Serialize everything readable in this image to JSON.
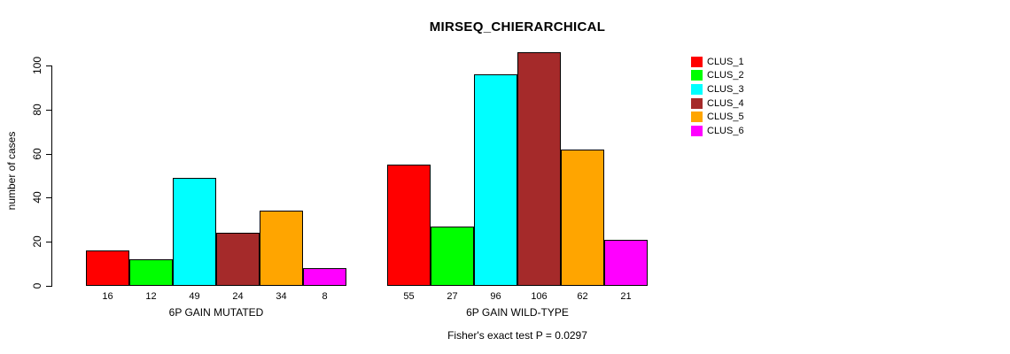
{
  "chart_data": {
    "type": "bar",
    "title": "MIRSEQ_CHIERARCHICAL",
    "xlabel": "",
    "ylabel": "number of cases",
    "ylim": [
      0,
      100
    ],
    "y_ticks": [
      0,
      20,
      40,
      60,
      80,
      100
    ],
    "grid": false,
    "legend_position": "right",
    "categories": [
      "6P GAIN MUTATED",
      "6P GAIN WILD-TYPE"
    ],
    "series": [
      {
        "name": "CLUS_1",
        "color": "#FF0000",
        "values": [
          16,
          55
        ]
      },
      {
        "name": "CLUS_2",
        "color": "#00FF00",
        "values": [
          12,
          27
        ]
      },
      {
        "name": "CLUS_3",
        "color": "#00FFFF",
        "values": [
          49,
          96
        ]
      },
      {
        "name": "CLUS_4",
        "color": "#A52A2A",
        "values": [
          24,
          106
        ]
      },
      {
        "name": "CLUS_5",
        "color": "#FFA500",
        "values": [
          34,
          62
        ]
      },
      {
        "name": "CLUS_6",
        "color": "#FF00FF",
        "values": [
          8,
          21
        ]
      }
    ],
    "bar_value_labels": true,
    "annotation": "Fisher's exact test P = 0.0297",
    "bar_border_color": "#000000",
    "background_color": "#FFFFFF"
  }
}
